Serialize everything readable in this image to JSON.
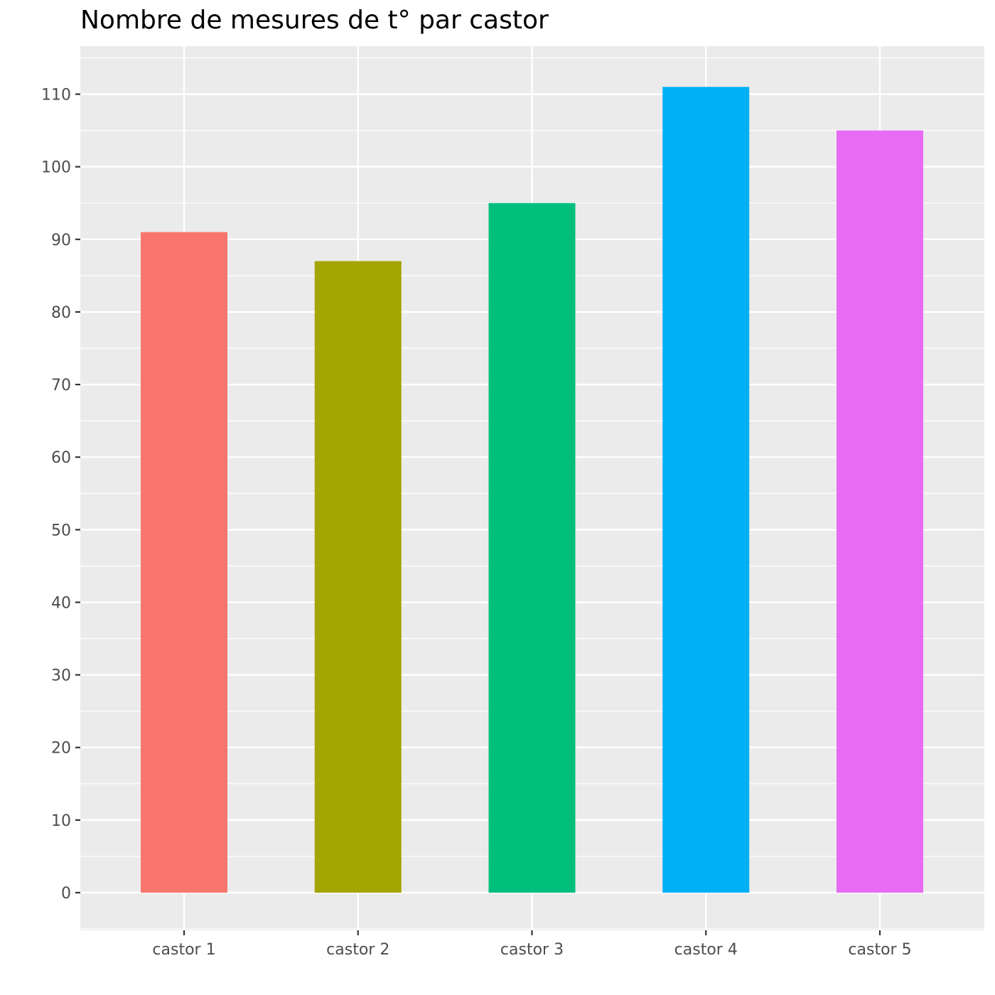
{
  "chart_data": {
    "type": "bar",
    "title": "Nombre de mesures de t° par castor",
    "xlabel": "",
    "ylabel": "",
    "categories": [
      "castor 1",
      "castor 2",
      "castor 3",
      "castor 4",
      "castor 5"
    ],
    "values": [
      91,
      87,
      95,
      111,
      105
    ],
    "colors": [
      "#F8766D",
      "#A3A500",
      "#00BF7D",
      "#00B0F6",
      "#E76BF3"
    ],
    "ylim": [
      -5,
      116.5
    ],
    "yticks": [
      0,
      10,
      20,
      30,
      40,
      50,
      60,
      70,
      80,
      90,
      100,
      110
    ],
    "grid": true,
    "legend": "none",
    "panel_background": "#EBEBEB",
    "grid_color": "#FFFFFF"
  }
}
